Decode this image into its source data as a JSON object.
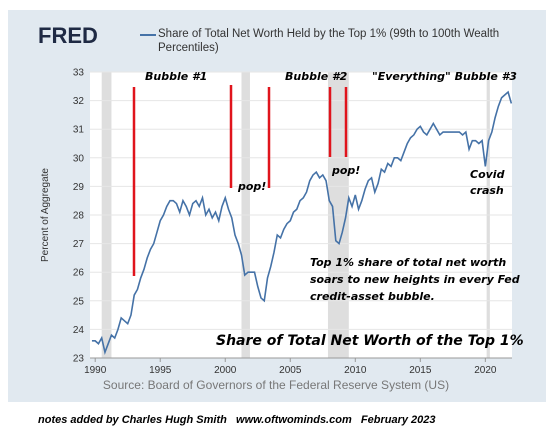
{
  "chart_data": {
    "type": "line",
    "logo": "FRED",
    "title": "Share of Total Net Worth Held by the Top 1% (99th to 100th Wealth Percentiles)",
    "y_label": "Percent of Aggregate",
    "source": "Source: Board of Governors of the Federal Reserve System (US)",
    "annotations": [
      "Bubble #1",
      "Bubble #2",
      "\"Everything\" Bubble #3",
      "pop!",
      "pop!",
      "Covid",
      "crash",
      "Top 1% share of total net worth",
      "soars to new heights in every Fed",
      "credit-asset bubble.",
      "Share of Total Net Worth of the Top 1%"
    ],
    "footnote": "notes added by Charles Hugh Smith   www.oftwominds.com   February 2023",
    "x": [
      1989.75,
      1990,
      1990.25,
      1990.5,
      1990.75,
      1991,
      1991.25,
      1991.5,
      1991.75,
      1992,
      1992.25,
      1992.5,
      1992.75,
      1993,
      1993.25,
      1993.5,
      1993.75,
      1994,
      1994.25,
      1994.5,
      1994.75,
      1995,
      1995.25,
      1995.5,
      1995.75,
      1996,
      1996.25,
      1996.5,
      1996.75,
      1997,
      1997.25,
      1997.5,
      1997.75,
      1998,
      1998.25,
      1998.5,
      1998.75,
      1999,
      1999.25,
      1999.5,
      1999.75,
      2000,
      2000.25,
      2000.5,
      2000.75,
      2001,
      2001.25,
      2001.5,
      2001.75,
      2002,
      2002.25,
      2002.5,
      2002.75,
      2003,
      2003.25,
      2003.5,
      2003.75,
      2004,
      2004.25,
      2004.5,
      2004.75,
      2005,
      2005.25,
      2005.5,
      2005.75,
      2006,
      2006.25,
      2006.5,
      2006.75,
      2007,
      2007.25,
      2007.5,
      2007.75,
      2008,
      2008.25,
      2008.5,
      2008.75,
      2009,
      2009.25,
      2009.5,
      2009.75,
      2010,
      2010.25,
      2010.5,
      2010.75,
      2011,
      2011.25,
      2011.5,
      2011.75,
      2012,
      2012.25,
      2012.5,
      2012.75,
      2013,
      2013.25,
      2013.5,
      2013.75,
      2014,
      2014.25,
      2014.5,
      2014.75,
      2015,
      2015.25,
      2015.5,
      2015.75,
      2016,
      2016.25,
      2016.5,
      2016.75,
      2017,
      2017.25,
      2017.5,
      2017.75,
      2018,
      2018.25,
      2018.5,
      2018.75,
      2019,
      2019.25,
      2019.5,
      2019.75,
      2020,
      2020.25,
      2020.5,
      2020.75,
      2021,
      2021.25,
      2021.5,
      2021.75,
      2022
    ],
    "series": [
      {
        "name": "Share of Total Net Worth Held by the Top 1% (99th to 100th Wealth Percentiles)",
        "color": "#4572a7",
        "values": [
          23.6,
          23.6,
          23.5,
          23.7,
          23.2,
          23.5,
          23.8,
          23.7,
          24.0,
          24.4,
          24.3,
          24.2,
          24.5,
          25.2,
          25.4,
          25.8,
          26.1,
          26.5,
          26.8,
          27.0,
          27.4,
          27.8,
          28.0,
          28.3,
          28.5,
          28.5,
          28.4,
          28.1,
          28.5,
          28.3,
          28.0,
          28.4,
          28.5,
          28.3,
          28.6,
          28.0,
          28.2,
          27.9,
          28.1,
          27.8,
          28.3,
          28.6,
          28.2,
          27.9,
          27.3,
          27.0,
          26.6,
          25.9,
          26.0,
          26.0,
          26.0,
          25.5,
          25.1,
          25.0,
          25.8,
          26.2,
          26.7,
          27.3,
          27.2,
          27.5,
          27.7,
          27.8,
          28.1,
          28.2,
          28.5,
          28.6,
          28.8,
          29.2,
          29.4,
          29.5,
          29.3,
          29.4,
          29.2,
          28.5,
          28.3,
          27.1,
          27.0,
          27.4,
          27.9,
          28.6,
          28.3,
          28.7,
          28.2,
          28.5,
          28.9,
          29.2,
          29.3,
          28.8,
          29.1,
          29.6,
          29.5,
          29.8,
          29.7,
          30.0,
          30.0,
          29.9,
          30.2,
          30.5,
          30.7,
          30.8,
          31.0,
          31.1,
          30.9,
          30.8,
          31.0,
          31.2,
          31.0,
          30.8,
          30.9,
          30.9,
          30.9,
          30.9,
          30.9,
          30.9,
          30.8,
          30.9,
          30.3,
          30.6,
          30.6,
          30.5,
          30.6,
          29.7,
          30.6,
          30.9,
          31.4,
          31.8,
          32.1,
          32.2,
          32.3,
          31.9
        ]
      }
    ],
    "recessions": [
      [
        1990.5,
        1991.25
      ],
      [
        2001.25,
        2001.9
      ],
      [
        2007.9,
        2009.5
      ],
      [
        2020.1,
        2020.35
      ]
    ],
    "recession_color": "#dedede",
    "xlim": [
      1989.6,
      2022.05
    ],
    "ylim": [
      23,
      33
    ],
    "xticks": [
      1990,
      1995,
      2000,
      2005,
      2010,
      2015,
      2020
    ],
    "yticks": [
      23,
      24,
      25,
      26,
      27,
      28,
      29,
      30,
      31,
      32,
      33
    ],
    "grid": true
  }
}
